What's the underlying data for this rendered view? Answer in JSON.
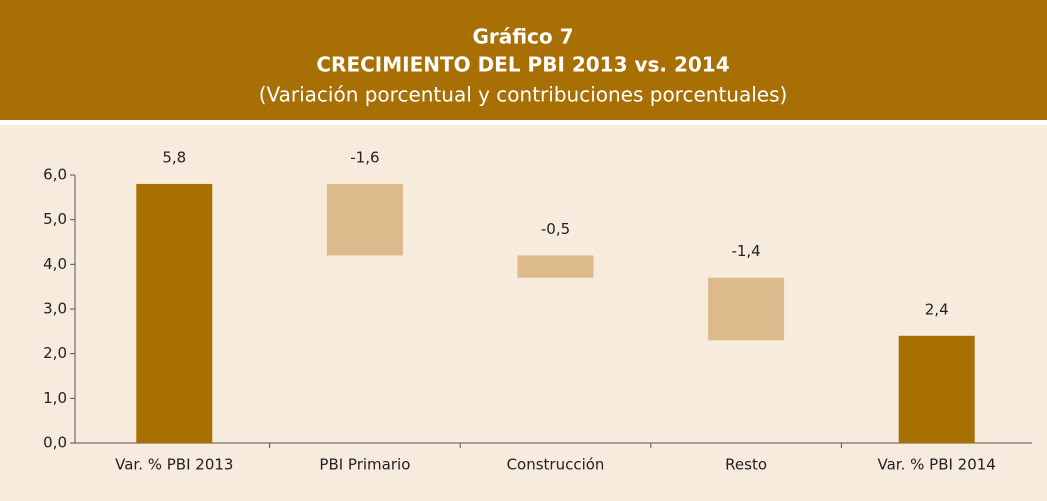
{
  "chart_data": {
    "type": "waterfall",
    "title": "Gráfico 7",
    "subtitle": "CRECIMIENTO DEL PBI 2013 vs. 2014",
    "note": "(Variación porcentual y contribuciones porcentuales)",
    "categories": [
      "Var. % PBI 2013",
      "PBI Primario",
      "Construcción",
      "Resto",
      "Var. % PBI 2014"
    ],
    "values": [
      5.8,
      -1.6,
      -0.5,
      -1.4,
      2.4
    ],
    "value_labels": [
      "5,8",
      "-1,6",
      "-0,5",
      "-1,4",
      "2,4"
    ],
    "measures": [
      "absolute",
      "relative",
      "relative",
      "relative",
      "absolute"
    ],
    "total_color": "#a86f03",
    "change_color": "#dcba8b",
    "ylim": [
      0,
      6
    ],
    "yticks": [
      {
        "value": 0,
        "label": "0,0"
      },
      {
        "value": 1,
        "label": "1,0"
      },
      {
        "value": 2,
        "label": "2,0"
      },
      {
        "value": 3,
        "label": "3,0"
      },
      {
        "value": 4,
        "label": "4,0"
      },
      {
        "value": 5,
        "label": "5,0"
      },
      {
        "value": 6,
        "label": "6,0"
      }
    ]
  }
}
